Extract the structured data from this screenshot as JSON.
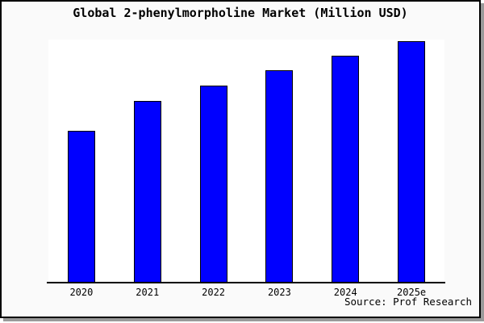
{
  "window": {
    "background": "#fafafa",
    "border_color": "#000000",
    "shadow_color": "#9a9a9a"
  },
  "title": "Global 2-phenylmorpholine Market (Million USD)",
  "source_note": "Source: Prof Research",
  "chart_data": {
    "type": "bar",
    "title": "Global 2-phenylmorpholine Market (Million USD)",
    "categories": [
      "2020",
      "2021",
      "2022",
      "2023",
      "2024",
      "2025e"
    ],
    "values": [
      188,
      225,
      244,
      263,
      281,
      299
    ],
    "value_note": "No y-axis, gridlines or data labels are shown; values are estimated relative bar heights in pixels (axis baseline to bar top).",
    "xlabel": "",
    "ylabel": "",
    "ylim": [
      0,
      301
    ],
    "grid": false,
    "legend": false,
    "bar_color": "#0000ff",
    "bar_border_color": "#000000",
    "plot_background": "#ffffff"
  }
}
